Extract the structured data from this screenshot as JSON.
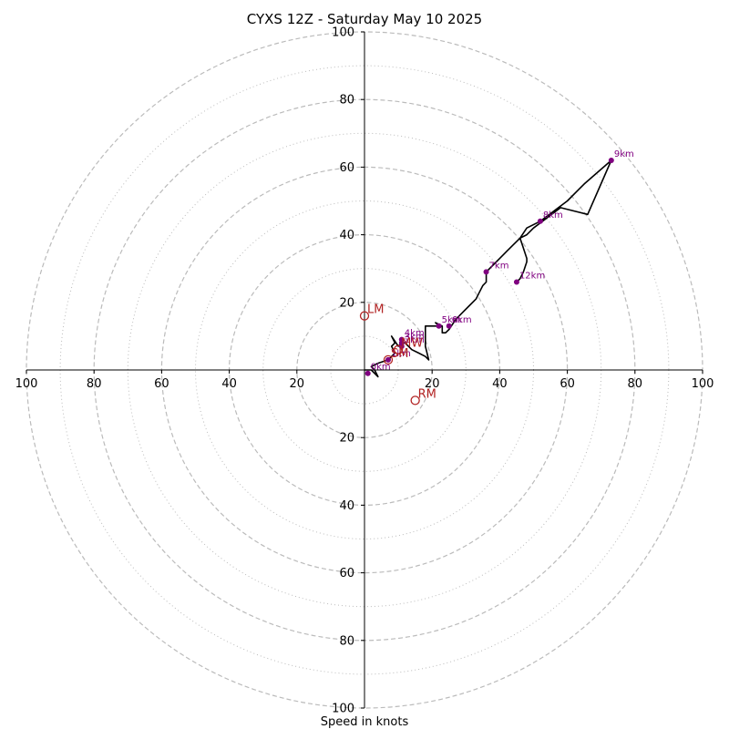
{
  "chart_data": {
    "type": "hodograph",
    "title": "CYXS 12Z - Saturday May 10 2025",
    "xlabel": "Speed in knots",
    "units": "knots",
    "axis_range": [
      -100,
      100
    ],
    "ring_major": [
      20,
      40,
      60,
      80,
      100
    ],
    "ring_minor": [
      10,
      30,
      50,
      70,
      90
    ],
    "grid": true,
    "tick_labels": [
      "100",
      "80",
      "60",
      "40",
      "20",
      "20",
      "40",
      "60",
      "80",
      "100"
    ],
    "tick_values": [
      -100,
      -80,
      -60,
      -40,
      -20,
      20,
      40,
      60,
      80,
      100
    ],
    "colors": {
      "trace": "#000000",
      "height_markers": "#800080",
      "motion_markers": "#b22222",
      "grid": "#bbbbbb"
    },
    "trace": [
      [
        0,
        0
      ],
      [
        2,
        0
      ],
      [
        4,
        -2
      ],
      [
        3,
        0
      ],
      [
        2,
        1
      ],
      [
        4,
        2
      ],
      [
        7,
        3
      ],
      [
        8,
        4
      ],
      [
        9,
        5
      ],
      [
        8,
        7
      ],
      [
        9,
        8
      ],
      [
        8,
        10
      ],
      [
        10,
        7
      ],
      [
        11,
        8
      ],
      [
        12,
        8
      ],
      [
        14,
        6
      ],
      [
        16,
        5
      ],
      [
        18,
        4
      ],
      [
        19,
        3
      ],
      [
        18,
        7
      ],
      [
        18,
        13
      ],
      [
        20,
        13
      ],
      [
        22,
        13
      ],
      [
        21,
        14
      ],
      [
        23,
        13
      ],
      [
        23,
        11
      ],
      [
        24,
        11
      ],
      [
        25,
        12
      ],
      [
        27,
        15
      ],
      [
        29,
        17
      ],
      [
        31,
        19
      ],
      [
        33,
        21
      ],
      [
        34,
        23
      ],
      [
        35,
        25
      ],
      [
        36,
        26
      ],
      [
        36,
        29
      ],
      [
        38,
        31
      ],
      [
        40,
        33
      ],
      [
        42,
        35
      ],
      [
        44,
        37
      ],
      [
        46,
        39
      ],
      [
        48,
        42
      ],
      [
        52,
        44
      ],
      [
        56,
        47
      ],
      [
        60,
        50
      ],
      [
        65,
        55
      ],
      [
        73,
        62
      ],
      [
        66,
        46
      ],
      [
        58,
        48
      ],
      [
        54,
        45
      ],
      [
        50,
        42
      ],
      [
        48,
        40
      ],
      [
        46,
        39
      ],
      [
        47,
        36
      ],
      [
        48,
        33
      ],
      [
        48,
        32
      ],
      [
        47,
        29
      ],
      [
        46,
        27
      ],
      [
        45,
        26
      ]
    ],
    "height_points": [
      {
        "label": "0km",
        "x": 1,
        "y": -1
      },
      {
        "label": "1km",
        "x": 7,
        "y": 3
      },
      {
        "label": "2km",
        "x": 11,
        "y": 7
      },
      {
        "label": "3km",
        "x": 11,
        "y": 8
      },
      {
        "label": "4km",
        "x": 11,
        "y": 9
      },
      {
        "label": "5km",
        "x": 22,
        "y": 13
      },
      {
        "label": "6km",
        "x": 25,
        "y": 13
      },
      {
        "label": "7km",
        "x": 36,
        "y": 29
      },
      {
        "label": "8km",
        "x": 52,
        "y": 44
      },
      {
        "label": "9km",
        "x": 73,
        "y": 62
      },
      {
        "label": "12km",
        "x": 45,
        "y": 26
      }
    ],
    "motion_points": [
      {
        "label": "LM",
        "x": 0,
        "y": 16
      },
      {
        "label": "RM",
        "x": 15,
        "y": -9
      },
      {
        "label": "MW",
        "x": 10,
        "y": 6
      },
      {
        "label": "SM",
        "x": 7,
        "y": 3
      }
    ]
  }
}
